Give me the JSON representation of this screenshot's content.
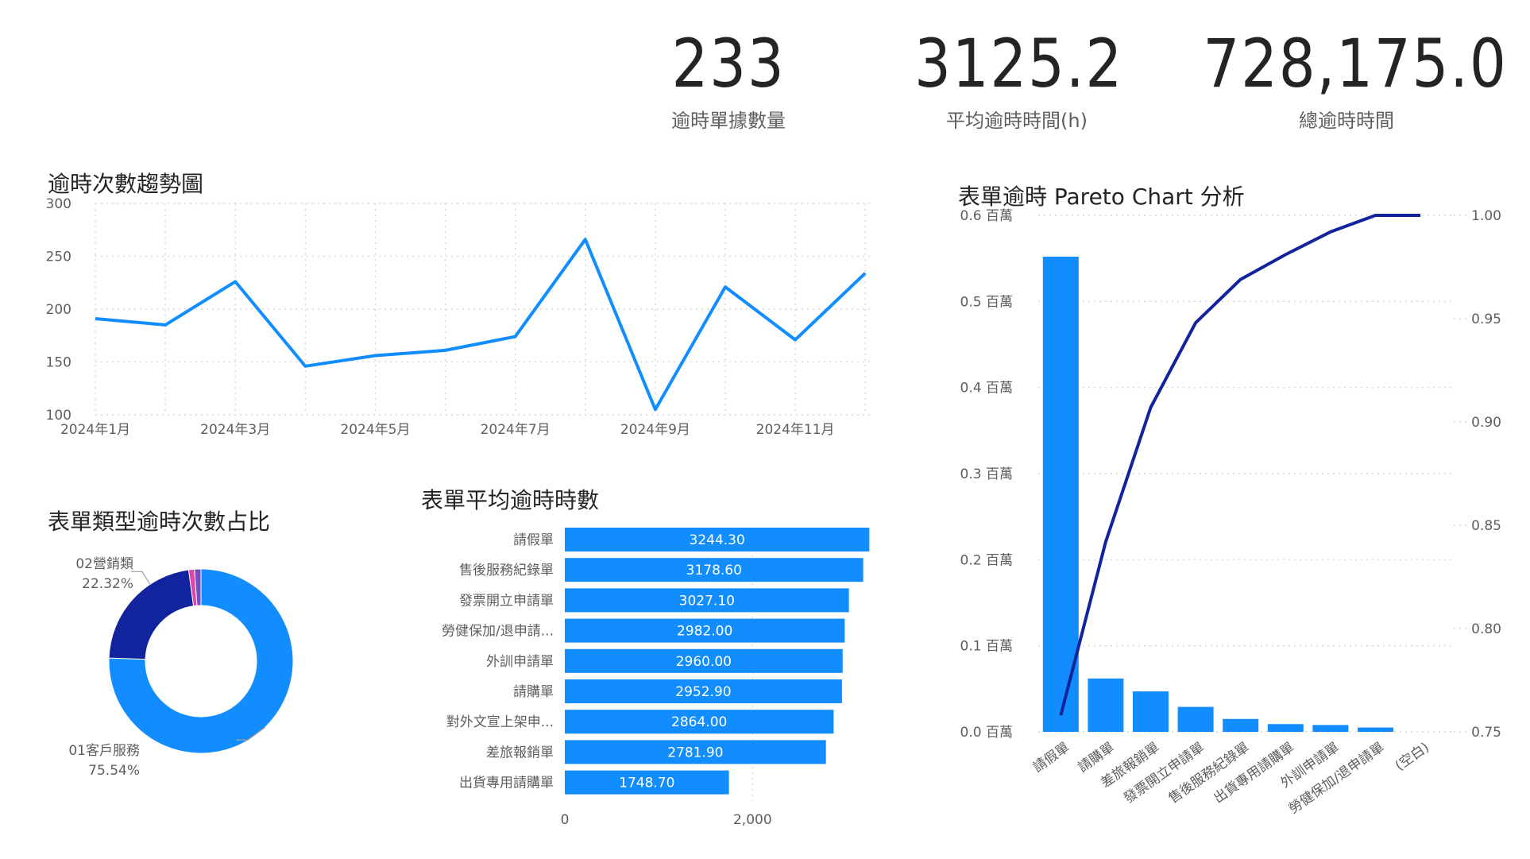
{
  "kpis": [
    {
      "value": "233",
      "label": "逾時單據數量"
    },
    {
      "value": "3125.2",
      "label": "平均逾時時間(h)"
    },
    {
      "value": "728,175.0",
      "label": "總逾時時間"
    }
  ],
  "colors": {
    "primary": "#118dff",
    "dark": "#12239e",
    "pink": "#e044a7",
    "purple": "#744ec2",
    "grid": "#d9d9d9",
    "axis_text": "#605e5c"
  },
  "chart_data": [
    {
      "type": "line",
      "title": "逾時次數趨勢圖",
      "x": [
        "2024年1月",
        "2024年2月",
        "2024年3月",
        "2024年4月",
        "2024年5月",
        "2024年6月",
        "2024年7月",
        "2024年8月",
        "2024年9月",
        "2024年10月",
        "2024年11月",
        "2024年12月"
      ],
      "x_tick_labels": [
        "2024年1月",
        "2024年3月",
        "2024年5月",
        "2024年7月",
        "2024年9月",
        "2024年11月"
      ],
      "values": [
        191,
        185,
        226,
        146,
        156,
        161,
        174,
        266,
        105,
        221,
        171,
        234
      ],
      "ylim": [
        100,
        300
      ],
      "y_ticks": [
        100,
        150,
        200,
        250,
        300
      ],
      "grid": true
    },
    {
      "type": "pie",
      "title": "表單類型逾時次數占比",
      "slices": [
        {
          "name": "01客戶服務",
          "percent_label": "75.54%",
          "value": 75.54,
          "color": "#118dff"
        },
        {
          "name": "02營銷類",
          "percent_label": "22.32%",
          "value": 22.32,
          "color": "#12239e"
        },
        {
          "name": "",
          "percent_label": "",
          "value": 1.0,
          "color": "#e044a7"
        },
        {
          "name": "",
          "percent_label": "",
          "value": 1.14,
          "color": "#744ec2"
        }
      ],
      "donut": true
    },
    {
      "type": "bar",
      "orientation": "horizontal",
      "title": "表單平均逾時時數",
      "categories": [
        "請假單",
        "售後服務紀錄單",
        "發票開立申請單",
        "勞健保加/退申請...",
        "外訓申請單",
        "請購單",
        "對外文宣上架申...",
        "差旅報銷單",
        "出貨專用請購單"
      ],
      "values": [
        3244.3,
        3178.6,
        3027.1,
        2982.0,
        2960.0,
        2952.9,
        2864.0,
        2781.9,
        1748.7
      ],
      "value_labels": [
        "3244.30",
        "3178.60",
        "3027.10",
        "2982.00",
        "2960.00",
        "2952.90",
        "2864.00",
        "2781.90",
        "1748.70"
      ],
      "x_ticks": [
        "0",
        "2,000"
      ],
      "xlim": [
        0,
        3250
      ]
    },
    {
      "type": "bar",
      "subtype": "pareto",
      "title": "表單逾時 Pareto Chart 分析",
      "categories": [
        "請假單",
        "請購單",
        "差旅報銷單",
        "發票開立申請單",
        "售後服務紀錄單",
        "出貨專用請購單",
        "外訓申請單",
        "勞健保加/退申請單",
        "(空白)"
      ],
      "values_millions": [
        0.552,
        0.062,
        0.047,
        0.029,
        0.015,
        0.009,
        0.008,
        0.005,
        0.0
      ],
      "cumulative": [
        0.758,
        0.842,
        0.907,
        0.948,
        0.969,
        0.981,
        0.992,
        1.0,
        1.0
      ],
      "y_left_ticks": [
        "0.0 百萬",
        "0.1 百萬",
        "0.2 百萬",
        "0.3 百萬",
        "0.4 百萬",
        "0.5 百萬",
        "0.6 百萬"
      ],
      "y_left_lim": [
        0,
        0.6
      ],
      "y_right_ticks": [
        "0.75",
        "0.80",
        "0.85",
        "0.90",
        "0.95",
        "1.00"
      ],
      "y_right_lim": [
        0.75,
        1.0
      ],
      "grid": true
    }
  ]
}
